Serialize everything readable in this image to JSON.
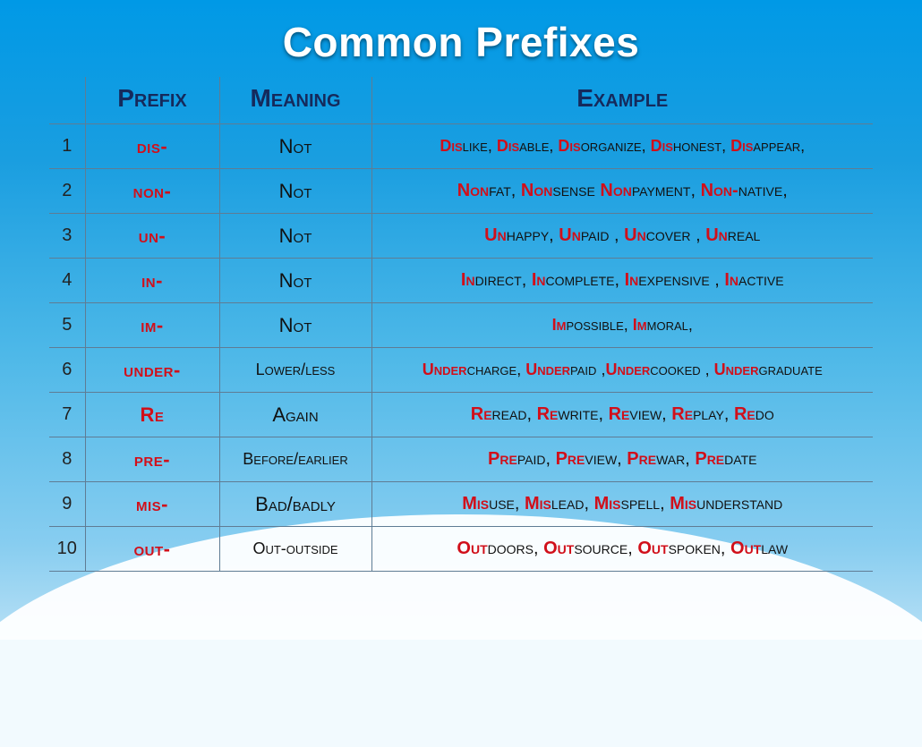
{
  "title": "Common Prefixes",
  "headers": {
    "num": "",
    "prefix": "Prefix",
    "meaning": "Meaning",
    "example": "Example"
  },
  "rows": [
    {
      "num": "1",
      "prefix": "dis-",
      "meaning": "Not",
      "example": [
        {
          "p": "Dis",
          "w": "like"
        },
        {
          "p": "Dis",
          "w": "able"
        },
        {
          "p": "Dis",
          "w": "organize"
        },
        {
          "p": "Dis",
          "w": "honest"
        },
        {
          "p": "Dis",
          "w": "appear"
        }
      ],
      "trailing": ","
    },
    {
      "num": "2",
      "prefix": "non-",
      "meaning": "Not",
      "example": [
        {
          "p": "Non",
          "w": "fat"
        },
        {
          "p": "Non",
          "w": "sense",
          "nocomma": true
        },
        {
          "p": "Non",
          "w": "payment"
        },
        {
          "p": "Non-",
          "w": "native"
        }
      ],
      "trailing": ","
    },
    {
      "num": "3",
      "prefix": "un-",
      "meaning": "Not",
      "example": [
        {
          "p": "Un",
          "w": "happy"
        },
        {
          "p": "Un",
          "w": "paid",
          "space": true
        },
        {
          "p": "Un",
          "w": "cover",
          "space": true
        },
        {
          "p": "Un",
          "w": "real"
        }
      ]
    },
    {
      "num": "4",
      "prefix": "in-",
      "meaning": "Not",
      "example": [
        {
          "p": "In",
          "w": "direct"
        },
        {
          "p": "In",
          "w": "complete"
        },
        {
          "p": "In",
          "w": "expensive",
          "space": true
        },
        {
          "p": "In",
          "w": "active"
        }
      ]
    },
    {
      "num": "5",
      "prefix": "im-",
      "meaning": "Not",
      "example": [
        {
          "p": "Im",
          "w": "possible"
        },
        {
          "p": "Im",
          "w": "moral"
        }
      ],
      "trailing": ","
    },
    {
      "num": "6",
      "prefix": "under-",
      "meaning": "Lower/less",
      "example": [
        {
          "p": "Under",
          "w": "charge"
        },
        {
          "p": "Under",
          "w": "paid",
          "space": true,
          "nocommaSpaceAfter": false
        },
        {
          "p": "Under",
          "w": "cooked",
          "space": true,
          "precomma": true
        },
        {
          "p": "Under",
          "w": "graduate"
        }
      ],
      "tight": true
    },
    {
      "num": "7",
      "prefix": "Re",
      "meaning": "Again",
      "example": [
        {
          "p": "Re",
          "w": "read"
        },
        {
          "p": "Re",
          "w": "write"
        },
        {
          "p": "Re",
          "w": "view"
        },
        {
          "p": "Re",
          "w": "play"
        },
        {
          "p": "Re",
          "w": "do"
        }
      ]
    },
    {
      "num": "8",
      "prefix": "pre-",
      "meaning": "Before/earlier",
      "example": [
        {
          "p": "Pre",
          "w": "paid"
        },
        {
          "p": "Pre",
          "w": "view"
        },
        {
          "p": "Pre",
          "w": "war"
        },
        {
          "p": "Pre",
          "w": "date"
        }
      ]
    },
    {
      "num": "9",
      "prefix": "mis-",
      "meaning": "Bad/badly",
      "example": [
        {
          "p": "Mis",
          "w": "use"
        },
        {
          "p": "Mis",
          "w": "lead"
        },
        {
          "p": "Mis",
          "w": "spell"
        },
        {
          "p": "Mis",
          "w": "understand"
        }
      ]
    },
    {
      "num": "10",
      "prefix": "out-",
      "meaning": "Out-outside",
      "example": [
        {
          "p": "Out",
          "w": "doors"
        },
        {
          "p": "Out",
          "w": "source"
        },
        {
          "p": "Out",
          "w": "spoken"
        },
        {
          "p": "Out",
          "w": "law"
        }
      ]
    }
  ]
}
